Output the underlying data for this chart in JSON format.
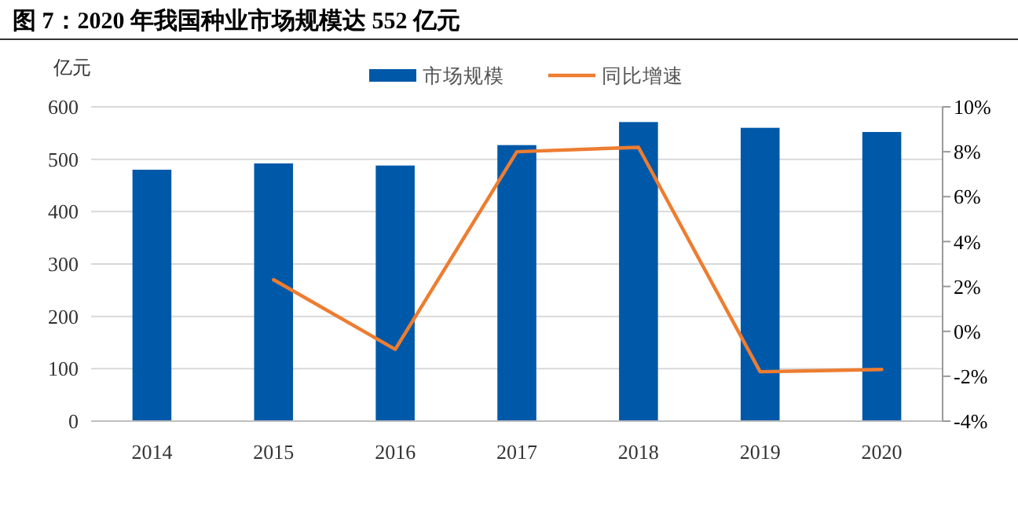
{
  "chart_data": {
    "type": "bar",
    "title": "图 7：2020 年我国种业市场规模达 552 亿元",
    "ylabel": "亿元",
    "categories": [
      "2014",
      "2015",
      "2016",
      "2017",
      "2018",
      "2019",
      "2020"
    ],
    "series": [
      {
        "name": "市场规模",
        "color": "#0058a8",
        "values": [
          480,
          492,
          488,
          527,
          571,
          560,
          552
        ]
      },
      {
        "name": "同比增速",
        "type": "line",
        "axis": "y2",
        "color": "#ed7d31",
        "values": [
          null,
          2.3,
          -0.8,
          8.0,
          8.2,
          -1.8,
          -1.7
        ]
      }
    ],
    "ylim": [
      0,
      600
    ],
    "yticks": [
      0,
      100,
      200,
      300,
      400,
      500,
      600
    ],
    "y2lim": [
      -4,
      10
    ],
    "y2ticks": [
      {
        "value": -4,
        "label": "-4%"
      },
      {
        "value": -2,
        "label": "-2%"
      },
      {
        "value": 0,
        "label": "0%"
      },
      {
        "value": 2,
        "label": "2%"
      },
      {
        "value": 4,
        "label": "4%"
      },
      {
        "value": 6,
        "label": "6%"
      },
      {
        "value": 8,
        "label": "8%"
      },
      {
        "value": 10,
        "label": "10%"
      }
    ],
    "grid": "y",
    "legend": "top right",
    "marker": "none",
    "line_style": "solid"
  }
}
